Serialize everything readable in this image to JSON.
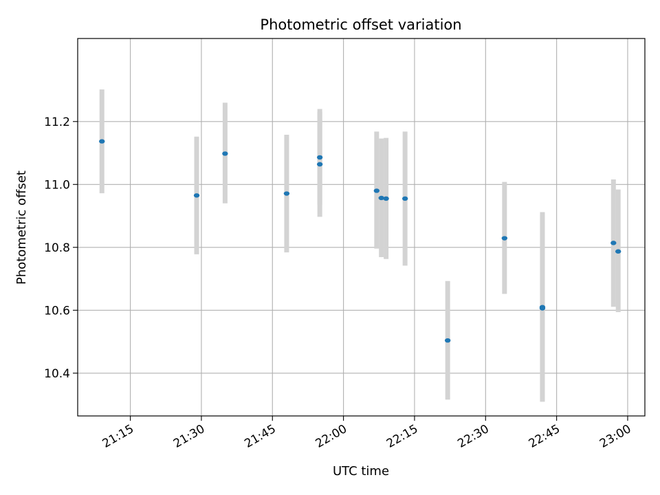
{
  "chart_data": {
    "type": "scatter",
    "title": "Photometric offset variation",
    "xlabel": "UTC time",
    "ylabel": "Photometric offset",
    "x_axis_kind": "time (HH:MM)",
    "xlim": [
      "21:03:53",
      "23:03:38"
    ],
    "ylim": [
      10.264,
      11.464
    ],
    "x_ticks": [
      "21:15",
      "21:30",
      "21:45",
      "22:00",
      "22:15",
      "22:30",
      "22:45",
      "23:00"
    ],
    "y_ticks": [
      "10.4",
      "10.6",
      "10.8",
      "11.0",
      "11.2"
    ],
    "grid": true,
    "point_color": "#1f77b4",
    "errorbar_color": "#d3d3d3",
    "points": [
      {
        "time": "21:09",
        "y": 11.137,
        "ylow": 10.972,
        "yhigh": 11.302
      },
      {
        "time": "21:29",
        "y": 10.965,
        "ylow": 10.778,
        "yhigh": 11.152
      },
      {
        "time": "21:35",
        "y": 11.098,
        "ylow": 10.94,
        "yhigh": 11.26
      },
      {
        "time": "21:48",
        "y": 10.971,
        "ylow": 10.784,
        "yhigh": 11.158
      },
      {
        "time": "21:55",
        "y": 11.086,
        "ylow": 10.935,
        "yhigh": 11.24
      },
      {
        "time": "21:55",
        "y": 11.064,
        "ylow": 10.897,
        "yhigh": 11.231
      },
      {
        "time": "22:07",
        "y": 10.98,
        "ylow": 10.796,
        "yhigh": 11.168
      },
      {
        "time": "22:08",
        "y": 10.957,
        "ylow": 10.769,
        "yhigh": 11.146
      },
      {
        "time": "22:09",
        "y": 10.955,
        "ylow": 10.763,
        "yhigh": 11.148
      },
      {
        "time": "22:13",
        "y": 10.955,
        "ylow": 10.742,
        "yhigh": 11.168
      },
      {
        "time": "22:22",
        "y": 10.504,
        "ylow": 10.316,
        "yhigh": 10.693
      },
      {
        "time": "22:34",
        "y": 10.829,
        "ylow": 10.652,
        "yhigh": 11.008
      },
      {
        "time": "22:42",
        "y": 10.61,
        "ylow": 10.31,
        "yhigh": 10.912
      },
      {
        "time": "22:42",
        "y": 10.606,
        "ylow": 10.309,
        "yhigh": 10.903
      },
      {
        "time": "22:57",
        "y": 10.814,
        "ylow": 10.611,
        "yhigh": 11.016
      },
      {
        "time": "22:58",
        "y": 10.787,
        "ylow": 10.594,
        "yhigh": 10.984
      }
    ]
  }
}
